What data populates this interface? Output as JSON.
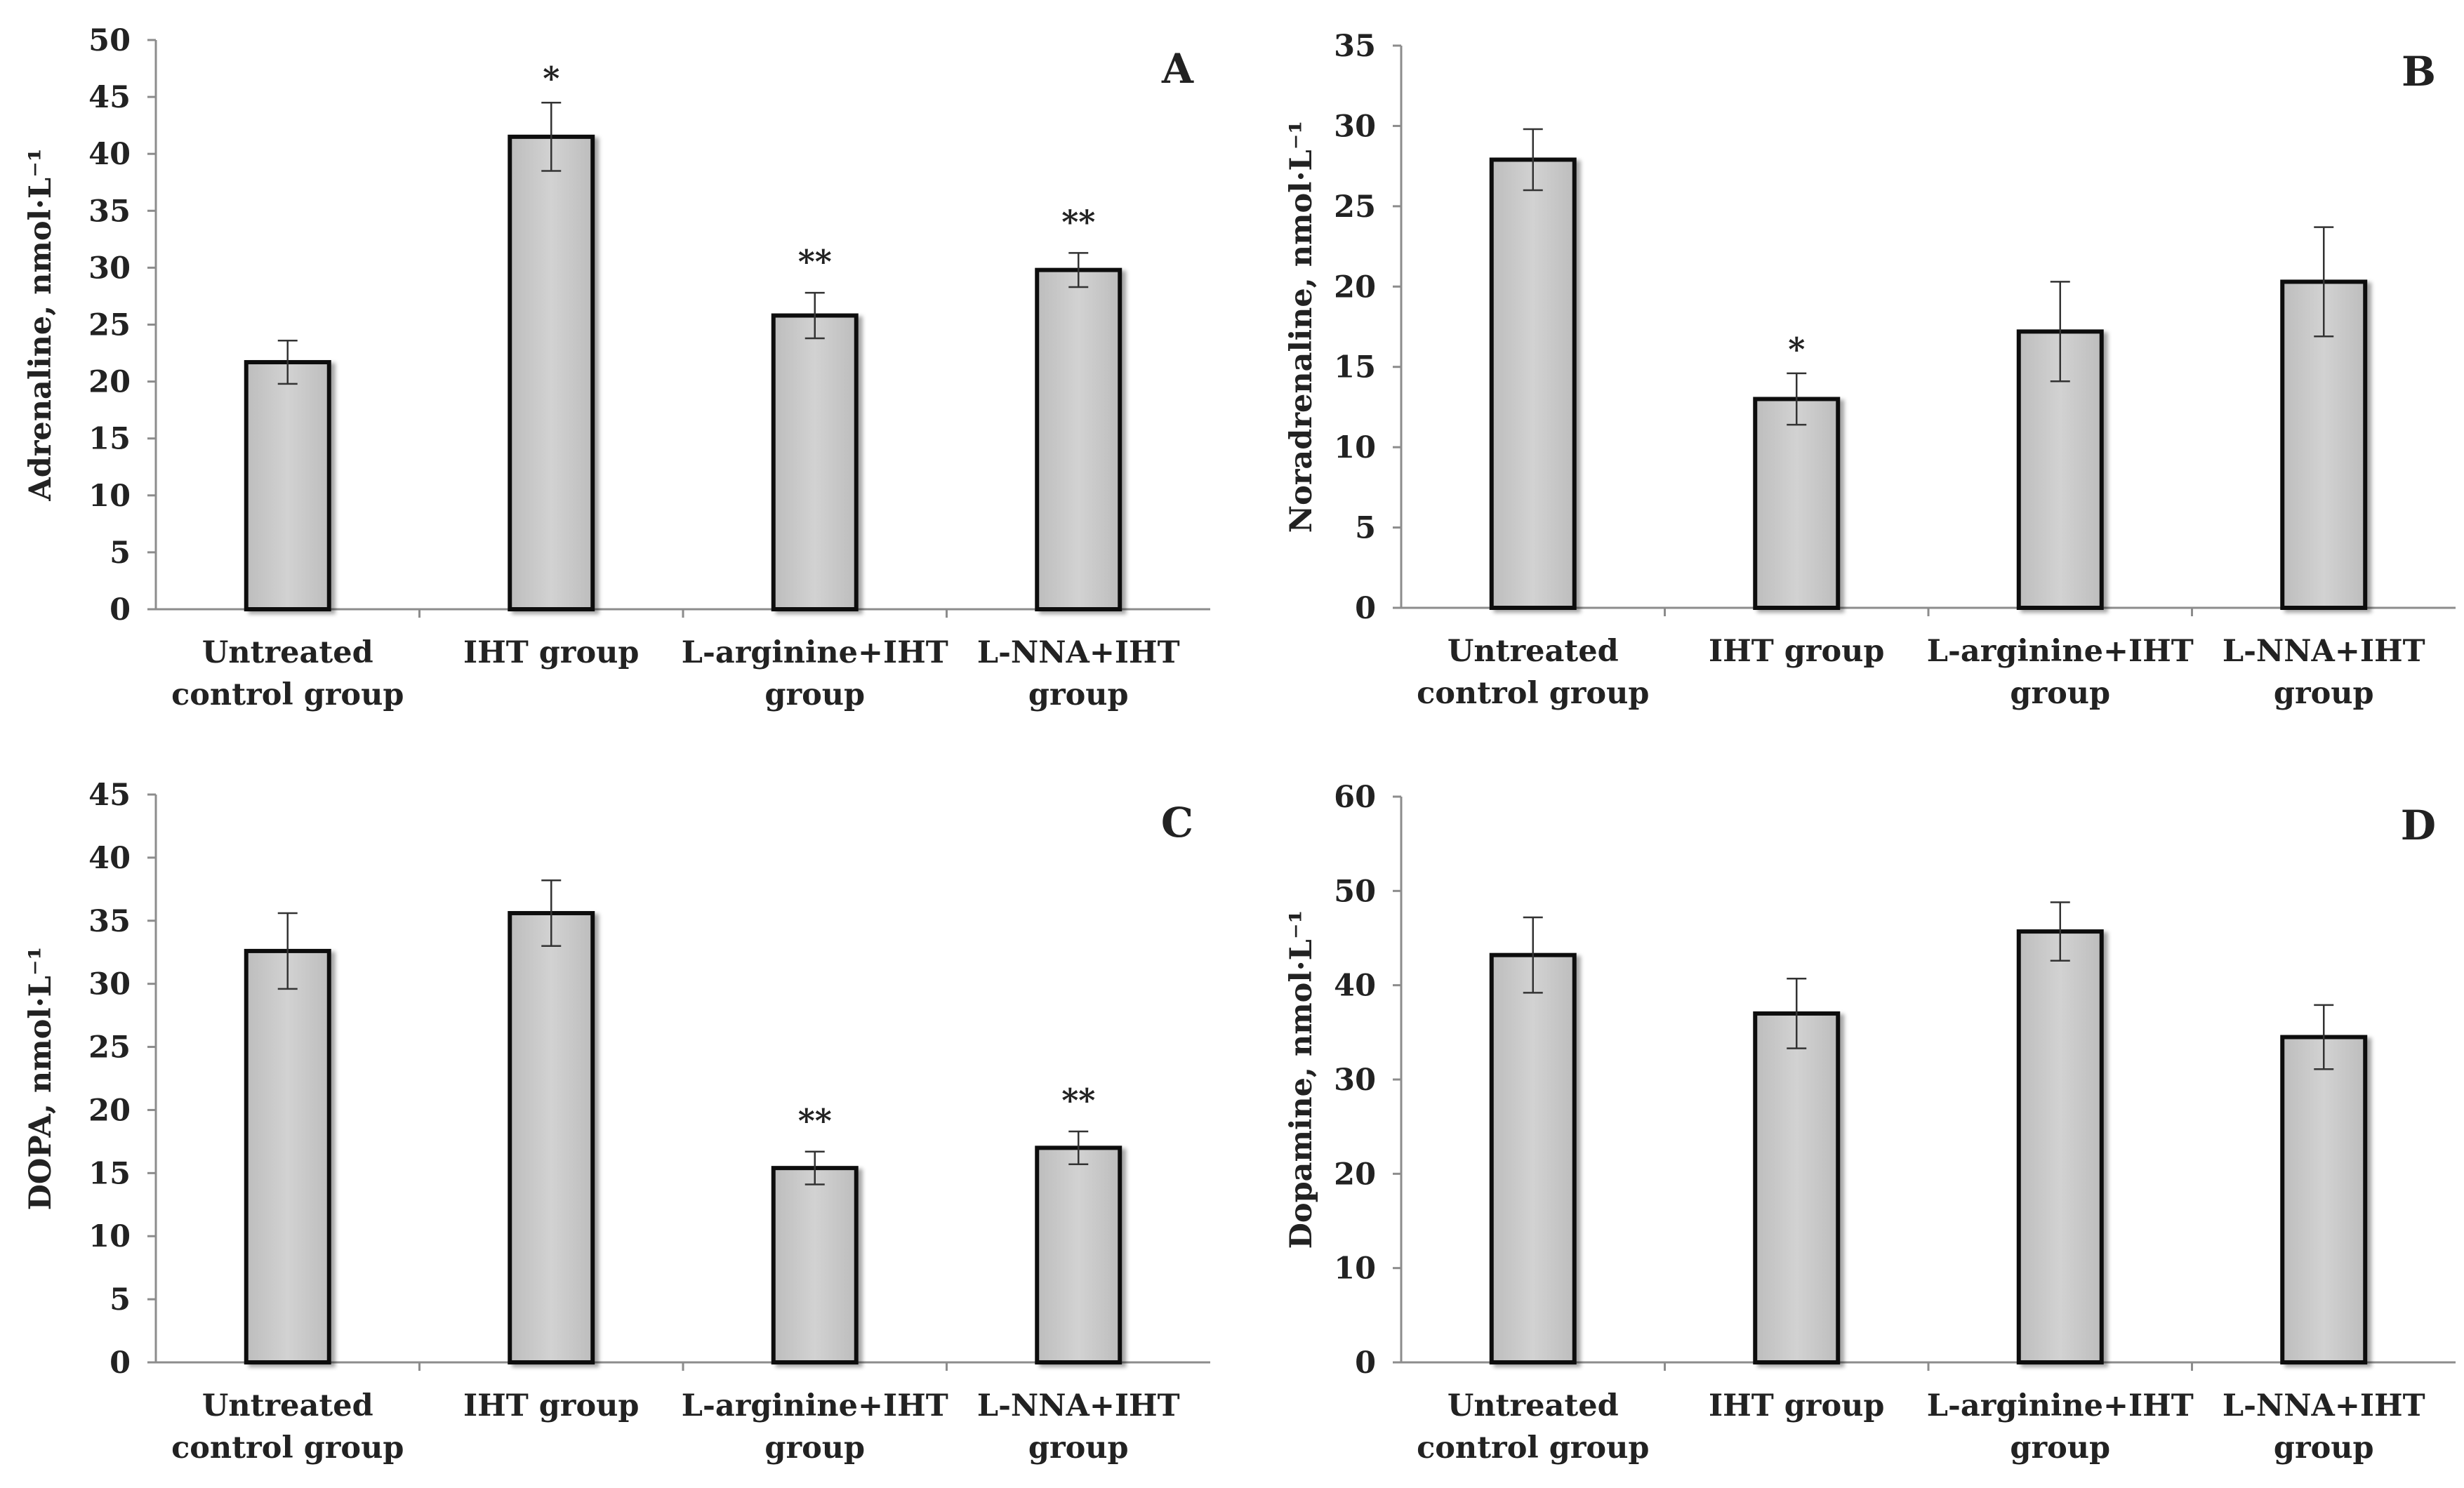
{
  "figure_title": "",
  "chart_data": [
    {
      "panel": "A",
      "type": "bar",
      "title": "",
      "xlabel": "",
      "ylabel": "Adrenaline, nmol·L⁻¹",
      "ylim": [
        0,
        50
      ],
      "yticks": [
        0,
        5,
        10,
        15,
        20,
        25,
        30,
        35,
        40,
        45,
        50
      ],
      "categories": [
        [
          "Untreated",
          "control group"
        ],
        [
          "IHT group"
        ],
        [
          "L-arginine+IHT",
          "group"
        ],
        [
          "L-NNA+IHT",
          "group"
        ]
      ],
      "values": [
        21.7,
        41.5,
        25.8,
        29.8
      ],
      "errors": [
        1.9,
        3.0,
        2.0,
        1.5
      ],
      "significance": [
        "",
        "*",
        "**",
        "**"
      ],
      "grid": false,
      "bar_color": "#c8c8c8"
    },
    {
      "panel": "B",
      "type": "bar",
      "title": "",
      "xlabel": "",
      "ylabel": "Noradrenaline, nmol·L⁻¹",
      "ylim": [
        0,
        35
      ],
      "yticks": [
        0,
        5,
        10,
        15,
        20,
        25,
        30,
        35
      ],
      "categories": [
        [
          "Untreated",
          "control group"
        ],
        [
          "IHT group"
        ],
        [
          "L-arginine+IHT",
          "group"
        ],
        [
          "L-NNA+IHT",
          "group"
        ]
      ],
      "values": [
        27.9,
        13.0,
        17.2,
        20.3
      ],
      "errors": [
        1.9,
        1.6,
        3.1,
        3.4
      ],
      "significance": [
        "",
        "*",
        "",
        ""
      ],
      "grid": false,
      "bar_color": "#c8c8c8"
    },
    {
      "panel": "C",
      "type": "bar",
      "title": "",
      "xlabel": "",
      "ylabel": "DOPA, nmol·L⁻¹",
      "ylim": [
        0,
        45
      ],
      "yticks": [
        0,
        5,
        10,
        15,
        20,
        25,
        30,
        35,
        40,
        45
      ],
      "categories": [
        [
          "Untreated",
          "control group"
        ],
        [
          "IHT group"
        ],
        [
          "L-arginine+IHT",
          "group"
        ],
        [
          "L-NNA+IHT",
          "group"
        ]
      ],
      "values": [
        32.6,
        35.6,
        15.4,
        17.0
      ],
      "errors": [
        3.0,
        2.6,
        1.3,
        1.3
      ],
      "significance": [
        "",
        "",
        "**",
        "**"
      ],
      "grid": false,
      "bar_color": "#c8c8c8"
    },
    {
      "panel": "D",
      "type": "bar",
      "title": "",
      "xlabel": "",
      "ylabel": "Dopamine, nmol·L⁻¹",
      "ylim": [
        0,
        60
      ],
      "yticks": [
        0,
        10,
        20,
        30,
        40,
        50,
        60
      ],
      "categories": [
        [
          "Untreated",
          "control group"
        ],
        [
          "IHT group"
        ],
        [
          "L-arginine+IHT",
          "group"
        ],
        [
          "L-NNA+IHT",
          "group"
        ]
      ],
      "values": [
        43.2,
        37.0,
        45.7,
        34.5
      ],
      "errors": [
        4.0,
        3.7,
        3.1,
        3.4
      ],
      "significance": [
        "",
        "",
        "",
        ""
      ],
      "grid": false,
      "bar_color": "#c8c8c8"
    }
  ]
}
